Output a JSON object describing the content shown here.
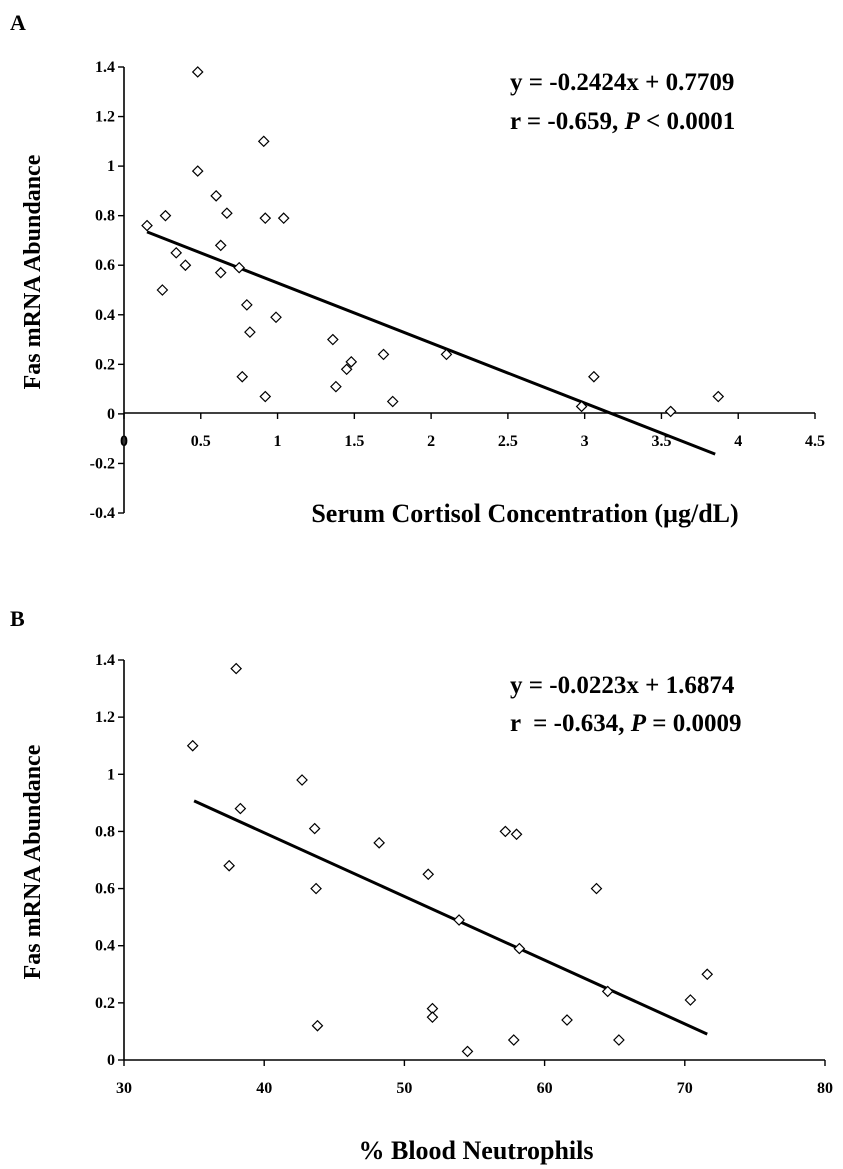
{
  "chart_data": [
    {
      "panel": "A",
      "type": "scatter",
      "xlabel": "Serum Cortisol Concentration (µg/dL)",
      "ylabel": "Fas mRNA Abundance",
      "xlim": [
        0,
        4.5
      ],
      "ylim": [
        -0.4,
        1.4
      ],
      "xticks": [
        "0",
        "0.5",
        "1",
        "1.5",
        "2",
        "2.5",
        "3",
        "3.5",
        "4",
        "4.5"
      ],
      "yticks": [
        "-0.4",
        "-0.2",
        "0",
        "0.2",
        "0.4",
        "0.6",
        "0.8",
        "1",
        "1.2",
        "1.4"
      ],
      "equation": "y = -0.2424x + 0.7709",
      "stats_prefix": "r = -0.659, ",
      "stats_p": "P",
      "stats_suffix": " < 0.0001",
      "trendline": {
        "slope": -0.2424,
        "intercept": 0.7709,
        "x_range": [
          0.15,
          3.85
        ]
      },
      "points": [
        [
          0.15,
          0.76
        ],
        [
          0.25,
          0.5
        ],
        [
          0.27,
          0.8
        ],
        [
          0.34,
          0.65
        ],
        [
          0.4,
          0.6
        ],
        [
          0.48,
          1.38
        ],
        [
          0.48,
          0.98
        ],
        [
          0.6,
          0.88
        ],
        [
          0.63,
          0.68
        ],
        [
          0.63,
          0.57
        ],
        [
          0.67,
          0.81
        ],
        [
          0.75,
          0.59
        ],
        [
          0.77,
          0.15
        ],
        [
          0.8,
          0.44
        ],
        [
          0.82,
          0.33
        ],
        [
          0.91,
          1.1
        ],
        [
          0.92,
          0.79
        ],
        [
          0.92,
          0.07
        ],
        [
          0.99,
          0.39
        ],
        [
          1.04,
          0.79
        ],
        [
          1.36,
          0.3
        ],
        [
          1.38,
          0.11
        ],
        [
          1.45,
          0.18
        ],
        [
          1.48,
          0.21
        ],
        [
          1.69,
          0.24
        ],
        [
          1.75,
          0.05
        ],
        [
          2.1,
          0.24
        ],
        [
          2.98,
          0.03
        ],
        [
          3.06,
          0.15
        ],
        [
          3.56,
          0.01
        ],
        [
          3.87,
          0.07
        ]
      ]
    },
    {
      "panel": "B",
      "type": "scatter",
      "xlabel": "% Blood Neutrophils",
      "ylabel": "Fas mRNA Abundance",
      "xlim": [
        30,
        80
      ],
      "ylim": [
        0,
        1.4
      ],
      "xticks": [
        "30",
        "40",
        "50",
        "60",
        "70",
        "80"
      ],
      "yticks": [
        "0",
        "0.2",
        "0.4",
        "0.6",
        "0.8",
        "1",
        "1.2",
        "1.4"
      ],
      "equation": "y = -0.0223x + 1.6874",
      "stats_prefix": "r  = -0.634, ",
      "stats_p": "P",
      "stats_suffix": " = 0.0009",
      "trendline": {
        "slope": -0.0223,
        "intercept": 1.6874,
        "x_range": [
          35,
          71.6
        ]
      },
      "points": [
        [
          34.9,
          1.1
        ],
        [
          37.5,
          0.68
        ],
        [
          38.0,
          1.37
        ],
        [
          38.3,
          0.88
        ],
        [
          42.7,
          0.98
        ],
        [
          43.6,
          0.81
        ],
        [
          43.7,
          0.6
        ],
        [
          43.8,
          0.12
        ],
        [
          48.2,
          0.76
        ],
        [
          51.7,
          0.65
        ],
        [
          52.0,
          0.18
        ],
        [
          52.0,
          0.15
        ],
        [
          53.9,
          0.49
        ],
        [
          54.5,
          0.03
        ],
        [
          57.2,
          0.8
        ],
        [
          57.8,
          0.07
        ],
        [
          58.0,
          0.79
        ],
        [
          58.2,
          0.39
        ],
        [
          61.6,
          0.14
        ],
        [
          63.7,
          0.6
        ],
        [
          64.5,
          0.24
        ],
        [
          65.3,
          0.07
        ],
        [
          70.4,
          0.21
        ],
        [
          71.6,
          0.3
        ]
      ]
    }
  ]
}
